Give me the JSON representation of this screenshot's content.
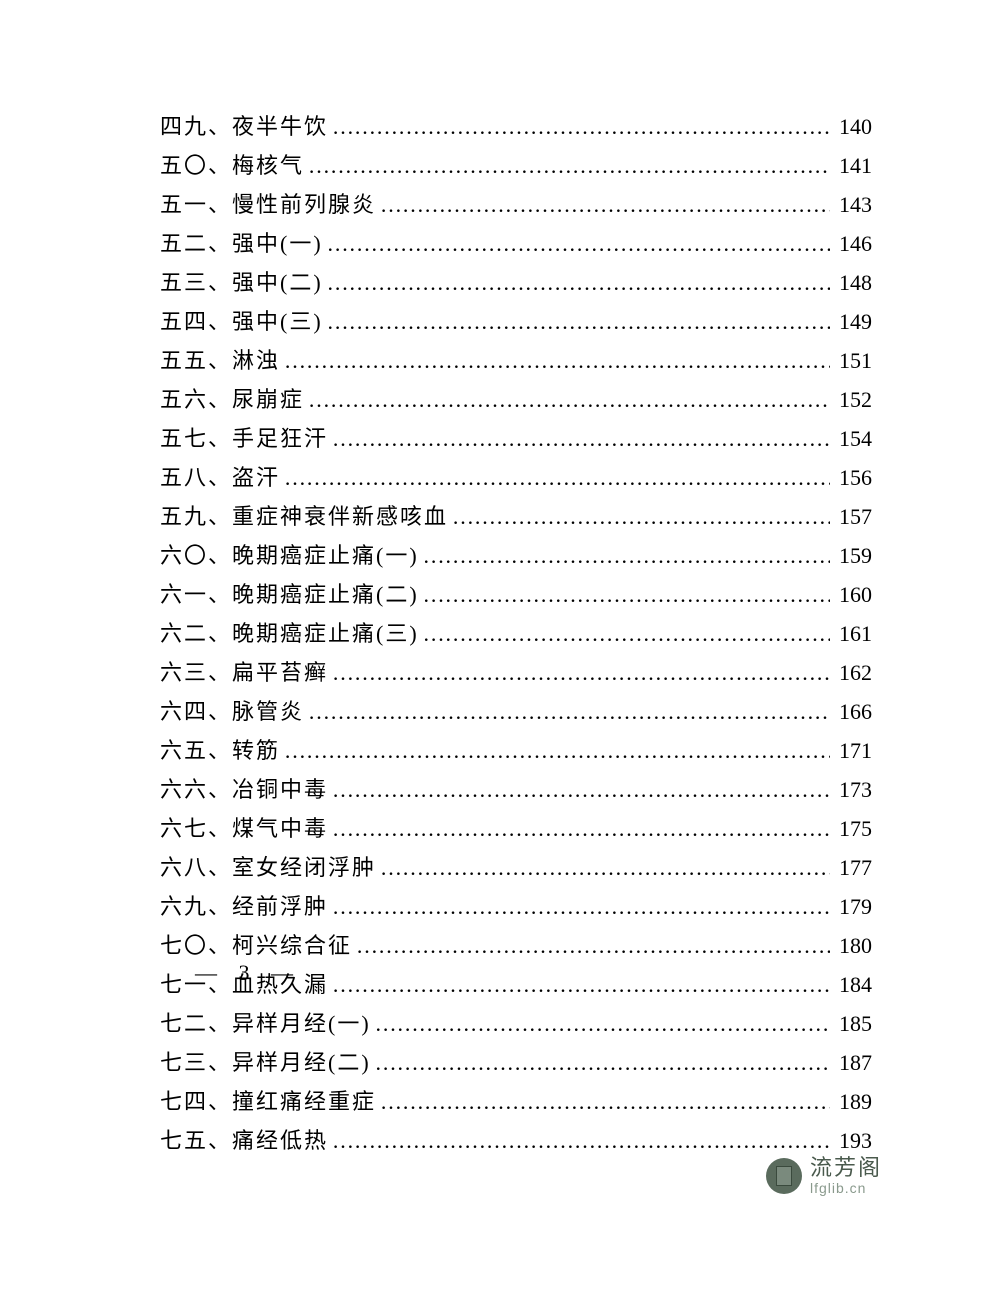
{
  "page": {
    "background_color": "#ffffff",
    "text_color": "#000000",
    "font_size": 22,
    "page_number_display": "— 3 —"
  },
  "toc_entries": [
    {
      "num": "四九、",
      "title": "夜半牛饮",
      "page": "140"
    },
    {
      "num": "五〇、",
      "title": "梅核气",
      "page": "141"
    },
    {
      "num": "五一、",
      "title": "慢性前列腺炎",
      "page": "143"
    },
    {
      "num": "五二、",
      "title": "强中(一)",
      "page": "146"
    },
    {
      "num": "五三、",
      "title": "强中(二)",
      "page": "148"
    },
    {
      "num": "五四、",
      "title": "强中(三)",
      "page": "149"
    },
    {
      "num": "五五、",
      "title": "淋浊",
      "page": "151"
    },
    {
      "num": "五六、",
      "title": "尿崩症",
      "page": "152"
    },
    {
      "num": "五七、",
      "title": "手足狂汗",
      "page": "154"
    },
    {
      "num": "五八、",
      "title": "盗汗",
      "page": "156"
    },
    {
      "num": "五九、",
      "title": "重症神衰伴新感咳血",
      "page": "157"
    },
    {
      "num": "六〇、",
      "title": "晚期癌症止痛(一)",
      "page": "159"
    },
    {
      "num": "六一、",
      "title": "晚期癌症止痛(二)",
      "page": "160"
    },
    {
      "num": "六二、",
      "title": "晚期癌症止痛(三)",
      "page": "161"
    },
    {
      "num": "六三、",
      "title": "扁平苔癣",
      "page": "162"
    },
    {
      "num": "六四、",
      "title": "脉管炎",
      "page": "166"
    },
    {
      "num": "六五、",
      "title": "转筋",
      "page": "171"
    },
    {
      "num": "六六、",
      "title": "冶铜中毒",
      "page": "173"
    },
    {
      "num": "六七、",
      "title": "煤气中毒",
      "page": "175"
    },
    {
      "num": "六八、",
      "title": "室女经闭浮肿",
      "page": "177"
    },
    {
      "num": "六九、",
      "title": "经前浮肿",
      "page": "179"
    },
    {
      "num": "七〇、",
      "title": "柯兴综合征",
      "page": "180"
    },
    {
      "num": "七一、",
      "title": "血热久漏",
      "page": "184"
    },
    {
      "num": "七二、",
      "title": "异样月经(一)",
      "page": "185"
    },
    {
      "num": "七三、",
      "title": "异样月经(二)",
      "page": "187"
    },
    {
      "num": "七四、",
      "title": "撞红痛经重症",
      "page": "189"
    },
    {
      "num": "七五、",
      "title": "痛经低热",
      "page": "193"
    }
  ],
  "watermark": {
    "main_text": "流芳阁",
    "sub_text": "lfglib.cn",
    "icon_bg_color": "#5a6b5d",
    "text_color": "#4a5a4d",
    "sub_color": "#8a9a8d"
  },
  "dots_char": "…"
}
